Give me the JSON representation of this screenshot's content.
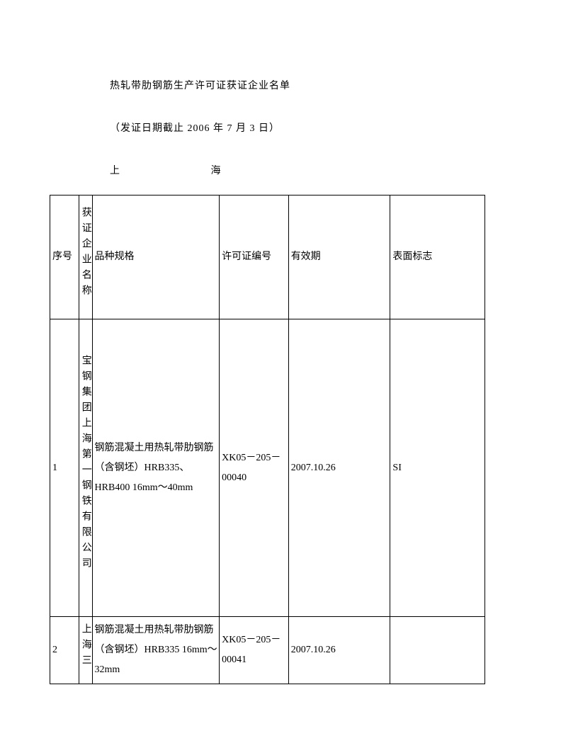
{
  "header": {
    "title": "热轧带肋钢筋生产许可证获证企业名单",
    "subtitle": "（发证日期截止 2006 年 7 月 3 日）",
    "region_left": "上",
    "region_right": "海"
  },
  "table": {
    "columns": {
      "seq": "序号",
      "company": "获证企业名称",
      "spec": "品种规格",
      "license": "许可证编号",
      "validity": "有效期",
      "mark": "表面标志"
    },
    "rows": [
      {
        "seq": "1",
        "company": "宝钢集团上海第一钢铁有限公司",
        "spec": "钢筋混凝土用热轧带肋钢筋（含钢坯）HRB335、HRB400 16mm～40mm",
        "license": "XK05－205－00040",
        "validity": "2007.10.26",
        "mark": "SI"
      },
      {
        "seq": "2",
        "company": "上海三",
        "spec": "钢筋混凝土用热轧带肋钢筋（含钢坯）HRB335 16mm～32mm",
        "license": "XK05－205－00041",
        "validity": "2007.10.26",
        "mark": ""
      }
    ],
    "border_color": "#000000",
    "background_color": "#ffffff",
    "font_size": 14
  }
}
